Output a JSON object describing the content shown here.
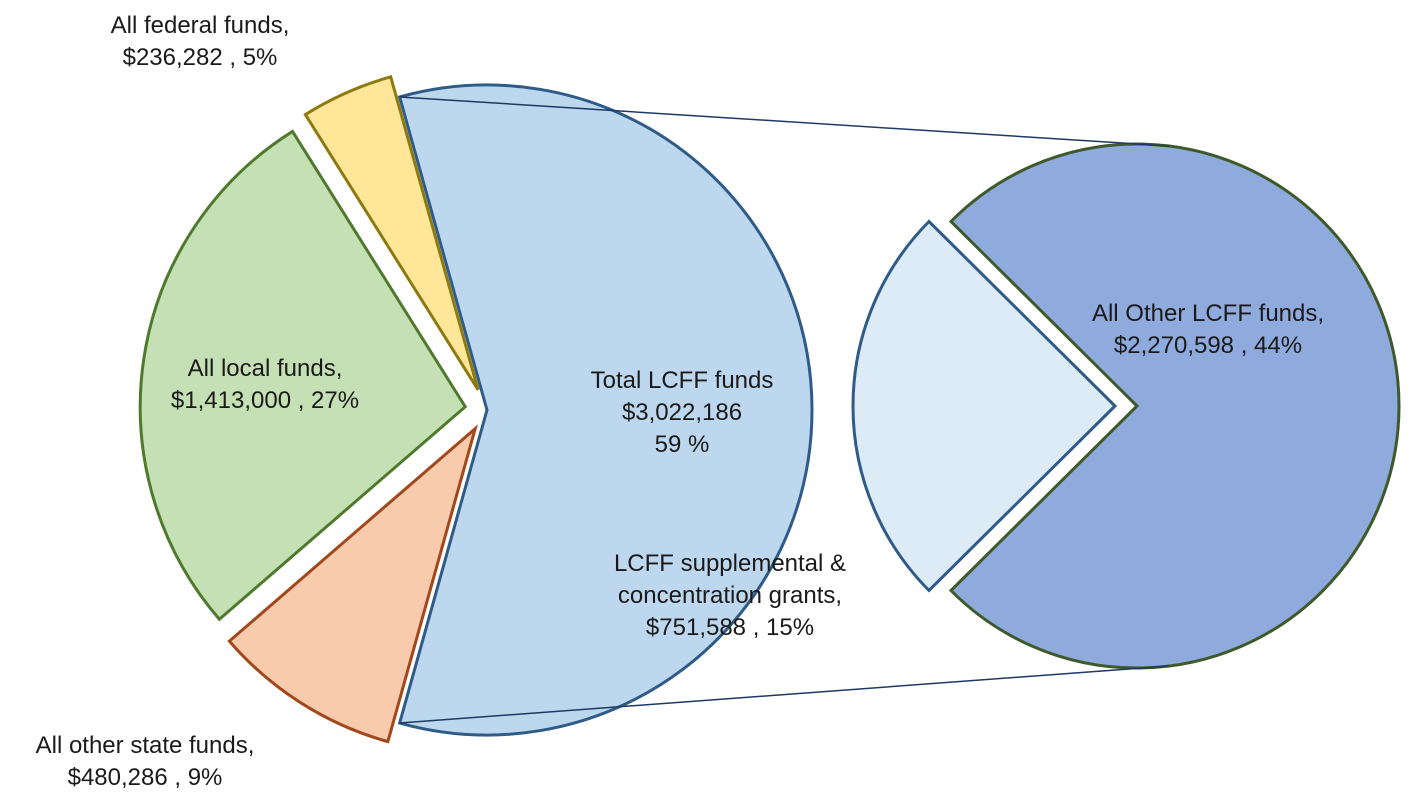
{
  "chart_data": {
    "type": "pie-of-pie",
    "main": {
      "categories": [
        "All federal funds,",
        "All local funds,",
        "All other state funds,",
        "Total LCFF funds"
      ],
      "values": [
        236282,
        1413000,
        480286,
        3022186
      ],
      "value_labels": [
        "$236,282 , 5%",
        "$1,413,000 , 27%",
        "$480,286 , 9%",
        "$3,022,186\n59 %"
      ],
      "colors": [
        "#ffe699",
        "#c5e0b4",
        "#f8cbad",
        "#bdd7ee"
      ]
    },
    "secondary": {
      "categories": [
        "LCFF supplemental & concentration grants,",
        "All Other LCFF funds,"
      ],
      "values": [
        751588,
        2270598
      ],
      "value_labels": [
        "$751,588 , 15%",
        "$2,270,598 , 44%"
      ],
      "colors": [
        "#ddebf7",
        "#8faadc"
      ]
    }
  }
}
